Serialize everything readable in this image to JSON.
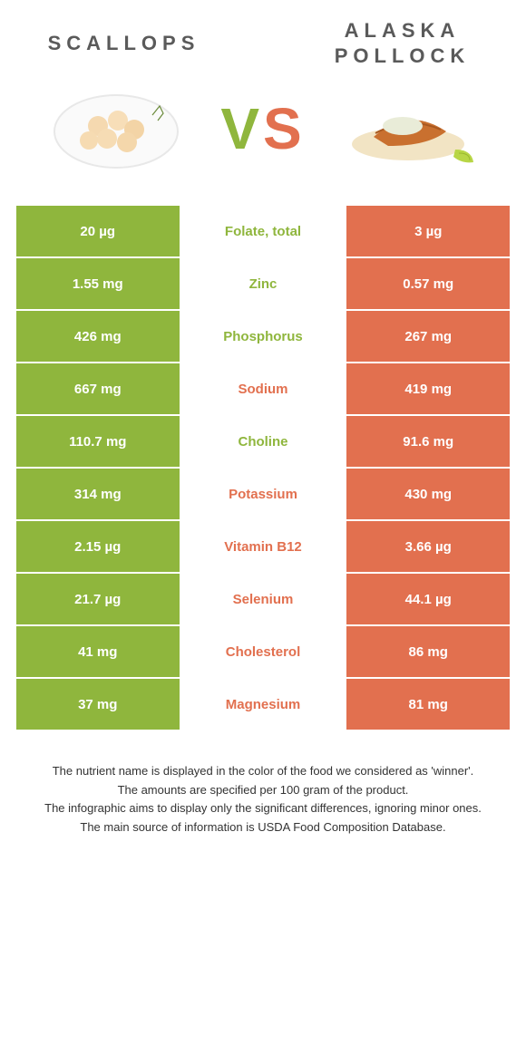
{
  "colors": {
    "green": "#8fb63d",
    "orange": "#e2704f",
    "title": "#5a5a5a",
    "mid_bg": "#ffffff"
  },
  "titles": {
    "left": "SCALLOPS",
    "right": "ALASKA POLLOCK",
    "title_fontsize": 22
  },
  "vs": {
    "v": "V",
    "s": "S"
  },
  "rows": [
    {
      "left": "20 µg",
      "label": "Folate, total",
      "right": "3 µg",
      "winner": "left"
    },
    {
      "left": "1.55 mg",
      "label": "Zinc",
      "right": "0.57 mg",
      "winner": "left"
    },
    {
      "left": "426 mg",
      "label": "Phosphorus",
      "right": "267 mg",
      "winner": "left"
    },
    {
      "left": "667 mg",
      "label": "Sodium",
      "right": "419 mg",
      "winner": "right"
    },
    {
      "left": "110.7 mg",
      "label": "Choline",
      "right": "91.6 mg",
      "winner": "left"
    },
    {
      "left": "314 mg",
      "label": "Potassium",
      "right": "430 mg",
      "winner": "right"
    },
    {
      "left": "2.15 µg",
      "label": "Vitamin B12",
      "right": "3.66 µg",
      "winner": "right"
    },
    {
      "left": "21.7 µg",
      "label": "Selenium",
      "right": "44.1 µg",
      "winner": "right"
    },
    {
      "left": "41 mg",
      "label": "Cholesterol",
      "right": "86 mg",
      "winner": "right"
    },
    {
      "left": "37 mg",
      "label": "Magnesium",
      "right": "81 mg",
      "winner": "right"
    }
  ],
  "footer": {
    "l1": "The nutrient name is displayed in the color of the food we considered as 'winner'.",
    "l2": "The amounts are specified per 100 gram of the product.",
    "l3": "The infographic aims to display only the significant differences, ignoring minor ones.",
    "l4": "The main source of information is USDA Food Composition Database."
  }
}
